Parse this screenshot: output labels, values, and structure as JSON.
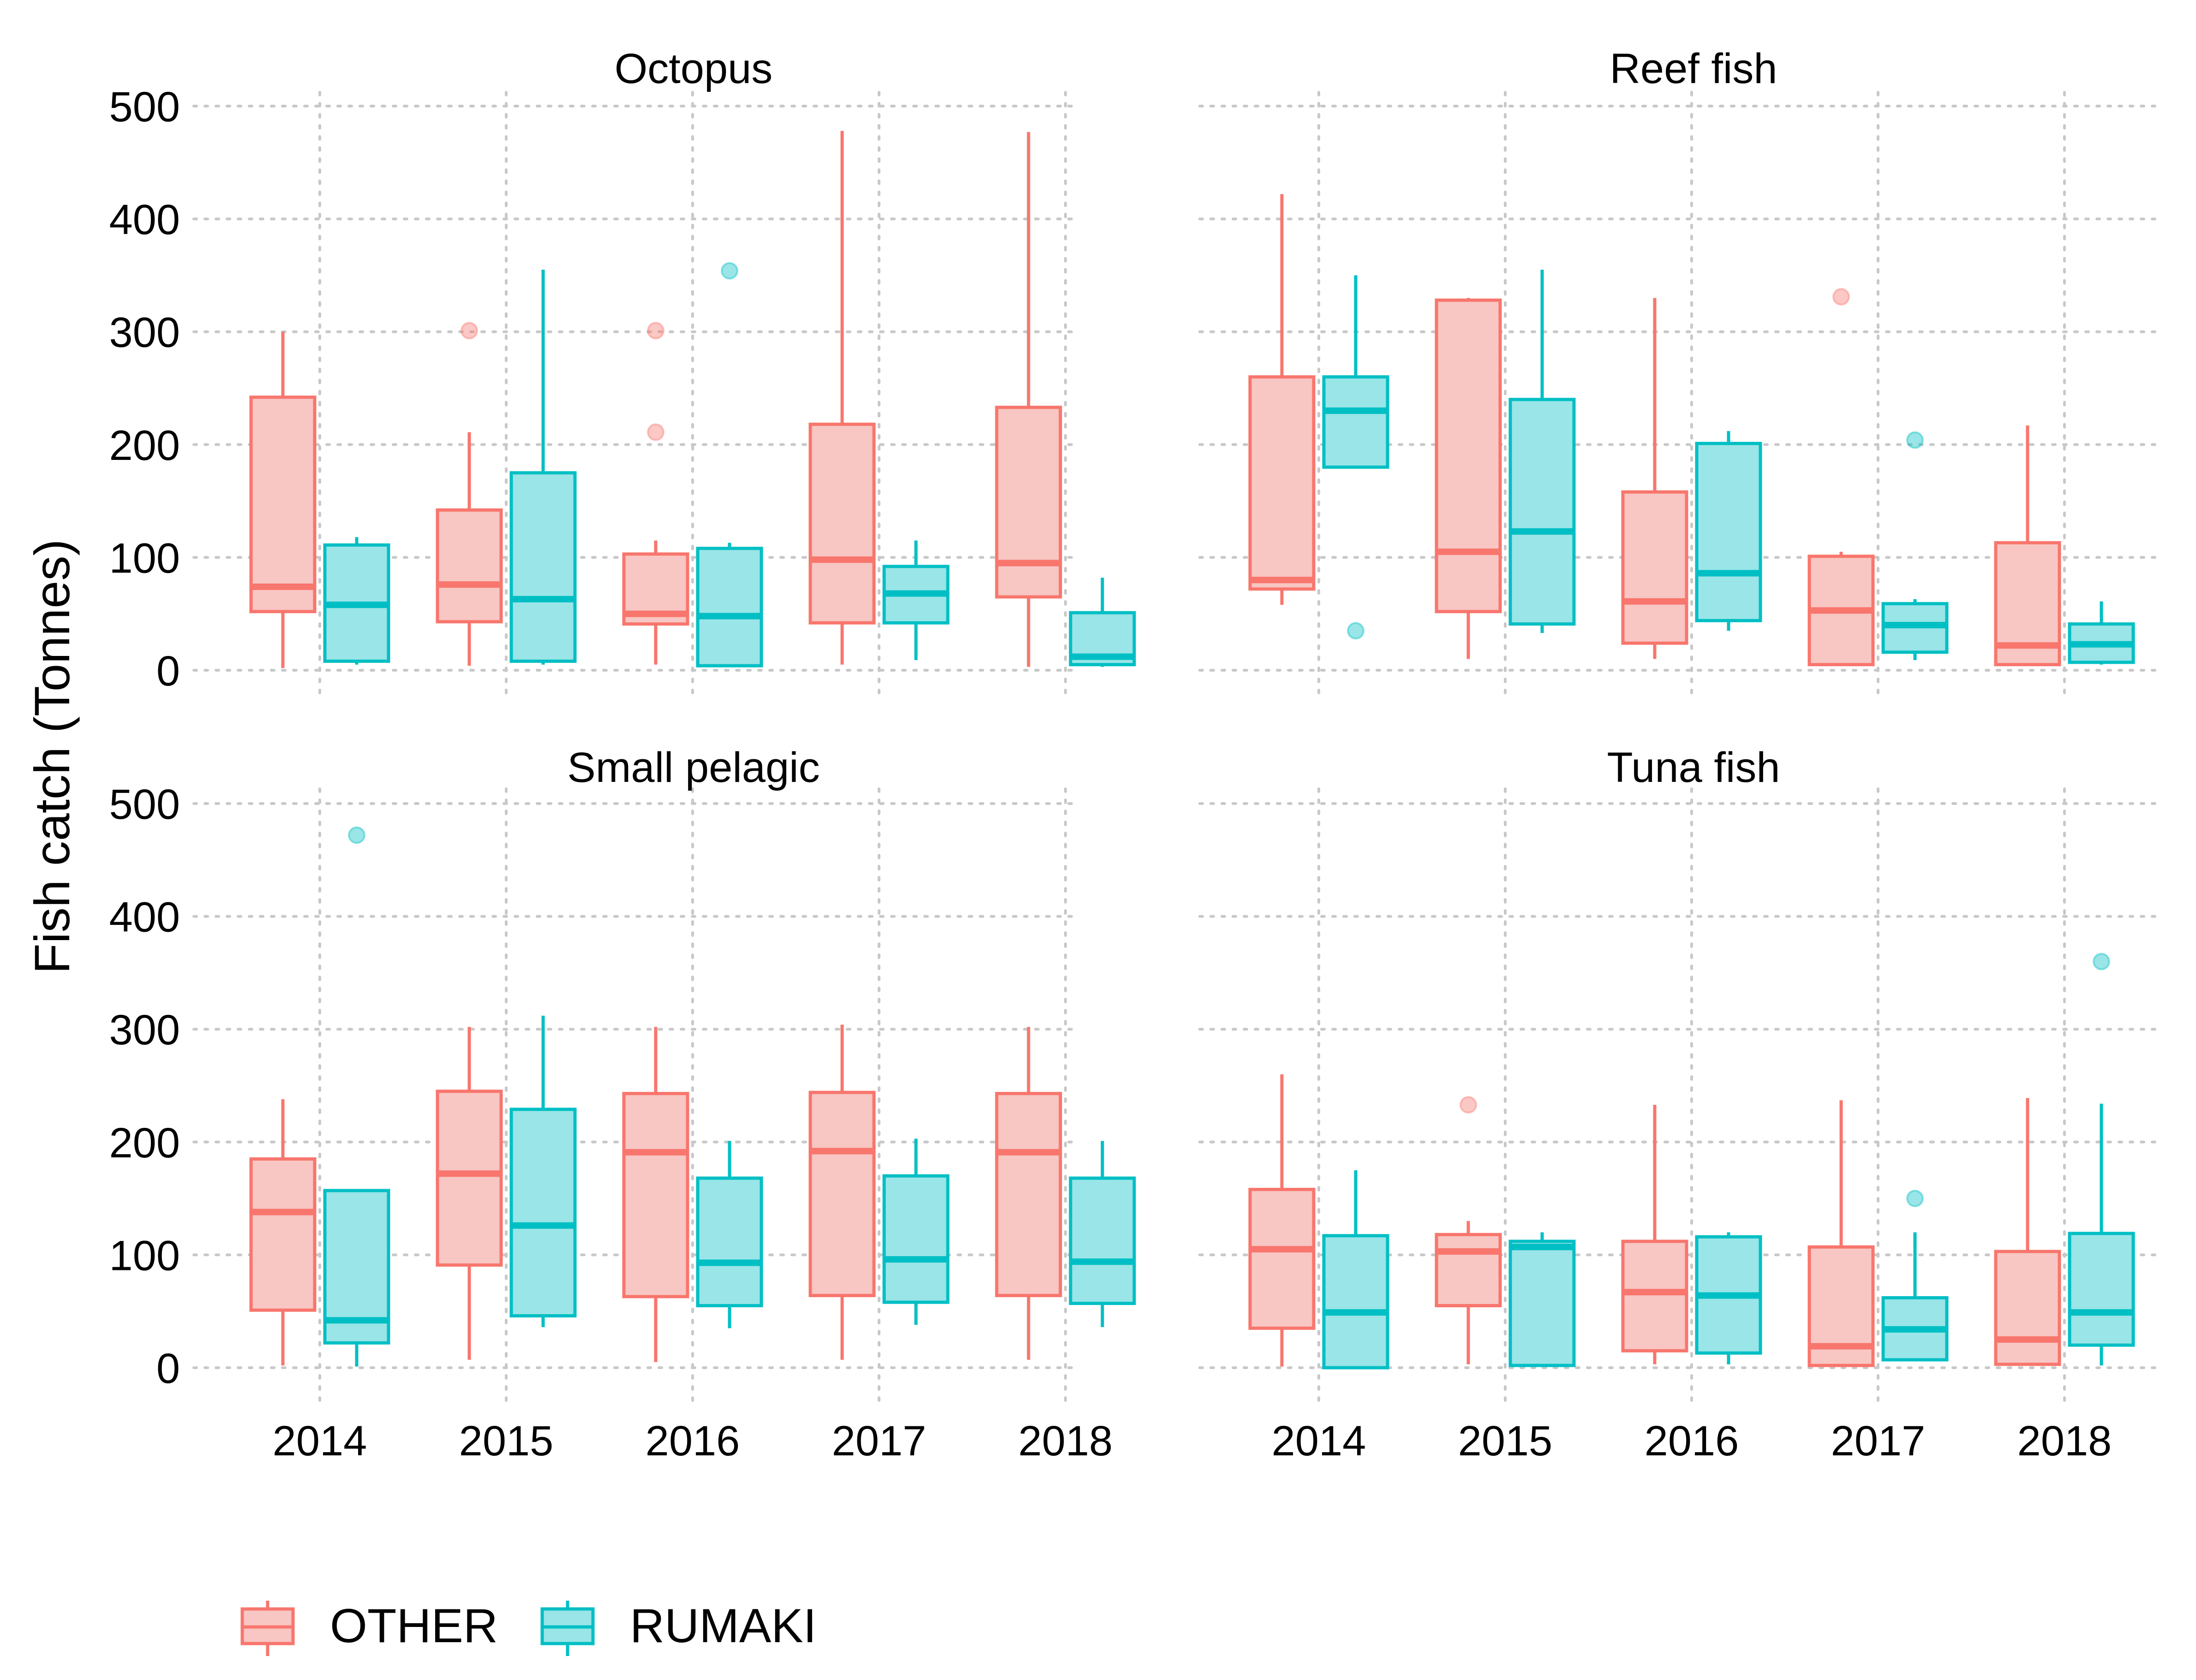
{
  "chart_data": {
    "type": "box",
    "ylabel": "Fish catch (Tonnes)",
    "ylim": [
      -35,
      520
    ],
    "yticks": [
      0,
      100,
      200,
      300,
      400,
      500
    ],
    "x_categories": [
      "2014",
      "2015",
      "2016",
      "2017",
      "2018"
    ],
    "grid": true,
    "legend_position": "bottom-left",
    "groups": [
      {
        "name": "OTHER",
        "color": "#F8766D",
        "fill": "#F8C6C3"
      },
      {
        "name": "RUMAKI",
        "color": "#00BFC4",
        "fill": "#99E5E7"
      }
    ],
    "panels": [
      {
        "title": "Octopus",
        "boxes": [
          {
            "year": "2014",
            "group": "OTHER",
            "min": 2,
            "q1": 52,
            "median": 74,
            "q3": 242,
            "max": 300,
            "outliers": []
          },
          {
            "year": "2014",
            "group": "RUMAKI",
            "min": 5,
            "q1": 8,
            "median": 58,
            "q3": 111,
            "max": 118,
            "outliers": []
          },
          {
            "year": "2015",
            "group": "OTHER",
            "min": 4,
            "q1": 43,
            "median": 76,
            "q3": 142,
            "max": 211,
            "outliers": [
              301
            ]
          },
          {
            "year": "2015",
            "group": "RUMAKI",
            "min": 5,
            "q1": 8,
            "median": 63,
            "q3": 175,
            "max": 355,
            "outliers": []
          },
          {
            "year": "2016",
            "group": "OTHER",
            "min": 5,
            "q1": 41,
            "median": 50,
            "q3": 103,
            "max": 115,
            "outliers": [
              211,
              301
            ]
          },
          {
            "year": "2016",
            "group": "RUMAKI",
            "min": 4,
            "q1": 4,
            "median": 48,
            "q3": 108,
            "max": 113,
            "outliers": [
              354
            ]
          },
          {
            "year": "2017",
            "group": "OTHER",
            "min": 5,
            "q1": 42,
            "median": 98,
            "q3": 218,
            "max": 478,
            "outliers": []
          },
          {
            "year": "2017",
            "group": "RUMAKI",
            "min": 9,
            "q1": 42,
            "median": 68,
            "q3": 92,
            "max": 115,
            "outliers": []
          },
          {
            "year": "2018",
            "group": "OTHER",
            "min": 3,
            "q1": 65,
            "median": 95,
            "q3": 233,
            "max": 477,
            "outliers": []
          },
          {
            "year": "2018",
            "group": "RUMAKI",
            "min": 3,
            "q1": 5,
            "median": 12,
            "q3": 51,
            "max": 82,
            "outliers": []
          }
        ]
      },
      {
        "title": "Reef fish",
        "boxes": [
          {
            "year": "2014",
            "group": "OTHER",
            "min": 58,
            "q1": 72,
            "median": 80,
            "q3": 260,
            "max": 422,
            "outliers": []
          },
          {
            "year": "2014",
            "group": "RUMAKI",
            "min": 180,
            "q1": 180,
            "median": 230,
            "q3": 260,
            "max": 350,
            "outliers": [
              35
            ]
          },
          {
            "year": "2015",
            "group": "OTHER",
            "min": 10,
            "q1": 52,
            "median": 105,
            "q3": 328,
            "max": 330,
            "outliers": []
          },
          {
            "year": "2015",
            "group": "RUMAKI",
            "min": 33,
            "q1": 41,
            "median": 123,
            "q3": 240,
            "max": 355,
            "outliers": []
          },
          {
            "year": "2016",
            "group": "OTHER",
            "min": 10,
            "q1": 24,
            "median": 61,
            "q3": 158,
            "max": 330,
            "outliers": []
          },
          {
            "year": "2016",
            "group": "RUMAKI",
            "min": 35,
            "q1": 44,
            "median": 86,
            "q3": 201,
            "max": 212,
            "outliers": []
          },
          {
            "year": "2017",
            "group": "OTHER",
            "min": 5,
            "q1": 5,
            "median": 53,
            "q3": 101,
            "max": 105,
            "outliers": [
              331
            ]
          },
          {
            "year": "2017",
            "group": "RUMAKI",
            "min": 9,
            "q1": 16,
            "median": 40,
            "q3": 59,
            "max": 63,
            "outliers": [
              204
            ]
          },
          {
            "year": "2018",
            "group": "OTHER",
            "min": 4,
            "q1": 5,
            "median": 22,
            "q3": 113,
            "max": 217,
            "outliers": []
          },
          {
            "year": "2018",
            "group": "RUMAKI",
            "min": 5,
            "q1": 7,
            "median": 23,
            "q3": 41,
            "max": 61,
            "outliers": []
          }
        ]
      },
      {
        "title": "Small pelagic",
        "boxes": [
          {
            "year": "2014",
            "group": "OTHER",
            "min": 2,
            "q1": 51,
            "median": 138,
            "q3": 185,
            "max": 238,
            "outliers": []
          },
          {
            "year": "2014",
            "group": "RUMAKI",
            "min": 1,
            "q1": 22,
            "median": 42,
            "q3": 157,
            "max": 157,
            "outliers": [
              472
            ]
          },
          {
            "year": "2015",
            "group": "OTHER",
            "min": 7,
            "q1": 91,
            "median": 172,
            "q3": 245,
            "max": 302,
            "outliers": []
          },
          {
            "year": "2015",
            "group": "RUMAKI",
            "min": 36,
            "q1": 46,
            "median": 126,
            "q3": 229,
            "max": 312,
            "outliers": []
          },
          {
            "year": "2016",
            "group": "OTHER",
            "min": 5,
            "q1": 63,
            "median": 191,
            "q3": 243,
            "max": 302,
            "outliers": []
          },
          {
            "year": "2016",
            "group": "RUMAKI",
            "min": 35,
            "q1": 55,
            "median": 93,
            "q3": 168,
            "max": 201,
            "outliers": []
          },
          {
            "year": "2017",
            "group": "OTHER",
            "min": 7,
            "q1": 64,
            "median": 192,
            "q3": 244,
            "max": 304,
            "outliers": []
          },
          {
            "year": "2017",
            "group": "RUMAKI",
            "min": 38,
            "q1": 58,
            "median": 96,
            "q3": 170,
            "max": 203,
            "outliers": []
          },
          {
            "year": "2018",
            "group": "OTHER",
            "min": 7,
            "q1": 64,
            "median": 191,
            "q3": 243,
            "max": 302,
            "outliers": []
          },
          {
            "year": "2018",
            "group": "RUMAKI",
            "min": 36,
            "q1": 57,
            "median": 94,
            "q3": 168,
            "max": 201,
            "outliers": []
          }
        ]
      },
      {
        "title": "Tuna fish",
        "boxes": [
          {
            "year": "2014",
            "group": "OTHER",
            "min": 1,
            "q1": 35,
            "median": 105,
            "q3": 158,
            "max": 260,
            "outliers": []
          },
          {
            "year": "2014",
            "group": "RUMAKI",
            "min": 0,
            "q1": 0,
            "median": 49,
            "q3": 117,
            "max": 175,
            "outliers": []
          },
          {
            "year": "2015",
            "group": "OTHER",
            "min": 3,
            "q1": 55,
            "median": 103,
            "q3": 118,
            "max": 130,
            "outliers": [
              233
            ]
          },
          {
            "year": "2015",
            "group": "RUMAKI",
            "min": 2,
            "q1": 2,
            "median": 107,
            "q3": 112,
            "max": 120,
            "outliers": []
          },
          {
            "year": "2016",
            "group": "OTHER",
            "min": 3,
            "q1": 15,
            "median": 67,
            "q3": 112,
            "max": 233,
            "outliers": []
          },
          {
            "year": "2016",
            "group": "RUMAKI",
            "min": 3,
            "q1": 13,
            "median": 64,
            "q3": 116,
            "max": 120,
            "outliers": []
          },
          {
            "year": "2017",
            "group": "OTHER",
            "min": 1,
            "q1": 2,
            "median": 19,
            "q3": 107,
            "max": 237,
            "outliers": []
          },
          {
            "year": "2017",
            "group": "RUMAKI",
            "min": 7,
            "q1": 7,
            "median": 34,
            "q3": 62,
            "max": 120,
            "outliers": [
              150
            ]
          },
          {
            "year": "2018",
            "group": "OTHER",
            "min": 3,
            "q1": 3,
            "median": 25,
            "q3": 103,
            "max": 239,
            "outliers": []
          },
          {
            "year": "2018",
            "group": "RUMAKI",
            "min": 2,
            "q1": 20,
            "median": 49,
            "q3": 119,
            "max": 234,
            "outliers": [
              360
            ]
          }
        ]
      }
    ]
  }
}
